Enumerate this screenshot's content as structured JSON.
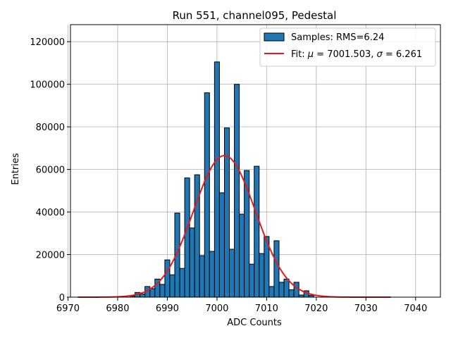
{
  "chart_data": {
    "type": "bar",
    "title": "Run 551, channel095, Pedestal",
    "xlabel": "ADC Counts",
    "ylabel": "Entries",
    "xlim": [
      6970.5,
      7045
    ],
    "ylim": [
      0,
      128000
    ],
    "grid": true,
    "x_ticks": [
      6970,
      6980,
      6990,
      7000,
      7010,
      7020,
      7030,
      7040
    ],
    "y_ticks": [
      0,
      20000,
      40000,
      60000,
      80000,
      100000,
      120000
    ],
    "bin_width": 1,
    "bins": [
      {
        "x": 6983,
        "value": 500
      },
      {
        "x": 6984,
        "value": 2200
      },
      {
        "x": 6985,
        "value": 1500
      },
      {
        "x": 6986,
        "value": 5000
      },
      {
        "x": 6987,
        "value": 4000
      },
      {
        "x": 6988,
        "value": 8500
      },
      {
        "x": 6989,
        "value": 6000
      },
      {
        "x": 6990,
        "value": 17500
      },
      {
        "x": 6991,
        "value": 10500
      },
      {
        "x": 6992,
        "value": 39500
      },
      {
        "x": 6993,
        "value": 13500
      },
      {
        "x": 6994,
        "value": 56000
      },
      {
        "x": 6995,
        "value": 32500
      },
      {
        "x": 6996,
        "value": 57500
      },
      {
        "x": 6997,
        "value": 19500
      },
      {
        "x": 6998,
        "value": 96000
      },
      {
        "x": 6999,
        "value": 21500
      },
      {
        "x": 7000,
        "value": 110500
      },
      {
        "x": 7001,
        "value": 49000
      },
      {
        "x": 7002,
        "value": 79500
      },
      {
        "x": 7003,
        "value": 22500
      },
      {
        "x": 7004,
        "value": 100000
      },
      {
        "x": 7005,
        "value": 39000
      },
      {
        "x": 7006,
        "value": 59500
      },
      {
        "x": 7007,
        "value": 15500
      },
      {
        "x": 7008,
        "value": 61500
      },
      {
        "x": 7009,
        "value": 20500
      },
      {
        "x": 7010,
        "value": 28500
      },
      {
        "x": 7011,
        "value": 5000
      },
      {
        "x": 7012,
        "value": 26500
      },
      {
        "x": 7013,
        "value": 7000
      },
      {
        "x": 7014,
        "value": 8500
      },
      {
        "x": 7015,
        "value": 3500
      },
      {
        "x": 7016,
        "value": 7000
      },
      {
        "x": 7017,
        "value": 1000
      },
      {
        "x": 7018,
        "value": 3000
      },
      {
        "x": 7019,
        "value": 800
      }
    ],
    "fit": {
      "mu": 7001.503,
      "sigma": 6.261,
      "amplitude": 66500,
      "x_range": [
        6972,
        7035
      ],
      "color": "#e41a1c"
    },
    "bar_color": "#1f77b4",
    "legend": {
      "position": "top-right",
      "entries": [
        {
          "label": "Samples: RMS=6.24",
          "kind": "patch"
        },
        {
          "label_prefix": "Fit: ",
          "mu_symbol": "μ",
          "mu_text": " = 7001.503, ",
          "sigma_symbol": "σ",
          "sigma_text": " = 6.261",
          "kind": "line"
        }
      ]
    }
  }
}
